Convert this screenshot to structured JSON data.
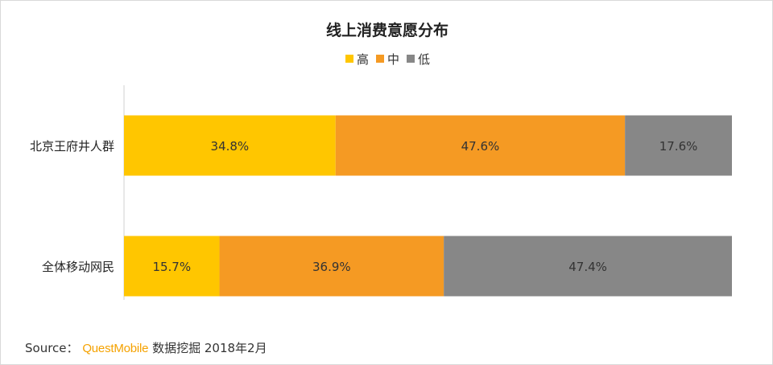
{
  "chart_data": {
    "type": "bar",
    "orientation": "horizontal",
    "stacked": true,
    "title": "线上消费意愿分布",
    "categories": [
      "北京王府井人群",
      "全体移动网民"
    ],
    "series": [
      {
        "name": "高",
        "values": [
          34.8,
          15.7
        ],
        "labels": [
          "34.8%",
          "15.7%"
        ]
      },
      {
        "name": "中",
        "values": [
          47.6,
          36.9
        ],
        "labels": [
          "47.6%",
          "36.9%"
        ]
      },
      {
        "name": "低",
        "values": [
          17.6,
          47.4
        ],
        "labels": [
          "17.6%",
          "47.4%"
        ]
      }
    ],
    "colors": [
      "#ffc600",
      "#f59a23",
      "#878787"
    ],
    "xlim": [
      0,
      100
    ],
    "grid": false,
    "legend_position": "top-center"
  },
  "source": {
    "prefix": "Source：",
    "brand": "QuestMobile",
    "suffix": "数据挖掘 2018年2月"
  }
}
